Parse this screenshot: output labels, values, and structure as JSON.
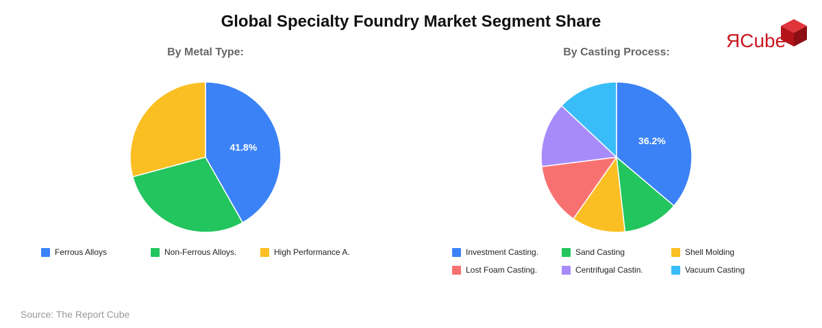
{
  "title": "Global Specialty Foundry Market Segment Share",
  "source": "Source: The Report Cube",
  "logo": {
    "text_r": "R",
    "text_rest": "Cube",
    "color": "#c8161d"
  },
  "colors": {
    "blue": "#3b82f6",
    "green": "#22c55e",
    "yellow": "#fbbf24",
    "red": "#f87171",
    "purple": "#a78bfa",
    "cyan": "#38bdf8"
  },
  "chart_data": [
    {
      "type": "pie",
      "title": "By Metal Type:",
      "slices": [
        {
          "label": "Ferrous Alloys",
          "value": 41.8,
          "color": "#3b82f6",
          "shown_label": "41.8%"
        },
        {
          "label": "Non-Ferrous Alloys.",
          "value": 29.0,
          "color": "#22c55e",
          "shown_label": ""
        },
        {
          "label": "High Performance A.",
          "value": 29.2,
          "color": "#fbbf24",
          "shown_label": ""
        }
      ]
    },
    {
      "type": "pie",
      "title": "By Casting Process:",
      "slices": [
        {
          "label": "Investment Casting.",
          "value": 36.2,
          "color": "#3b82f6",
          "shown_label": "36.2%"
        },
        {
          "label": "Sand Casting",
          "value": 12.0,
          "color": "#22c55e",
          "shown_label": ""
        },
        {
          "label": "Shell Molding",
          "value": 11.5,
          "color": "#fbbf24",
          "shown_label": ""
        },
        {
          "label": "Lost Foam Casting.",
          "value": 13.3,
          "color": "#f87171",
          "shown_label": ""
        },
        {
          "label": "Centrifugal Castin.",
          "value": 14.0,
          "color": "#a78bfa",
          "shown_label": ""
        },
        {
          "label": "Vacuum Casting",
          "value": 13.0,
          "color": "#38bdf8",
          "shown_label": ""
        }
      ]
    }
  ]
}
